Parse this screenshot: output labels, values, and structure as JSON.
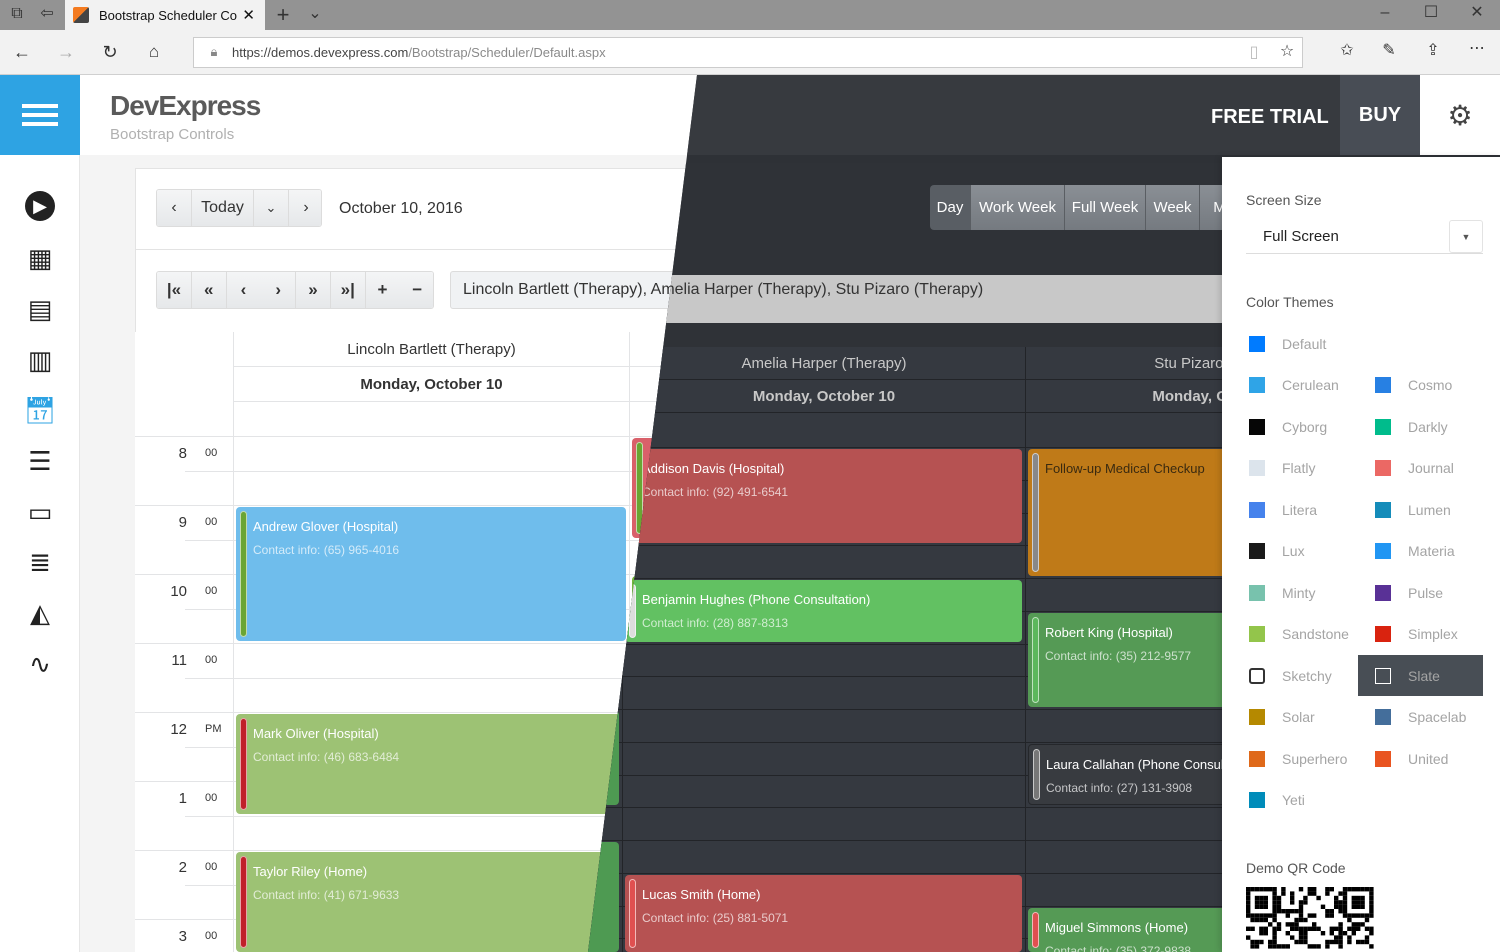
{
  "browser": {
    "tab_title": "Bootstrap Scheduler Co",
    "url_host": "https://demos.devexpress.com",
    "url_path": "/Bootstrap/Scheduler/Default.aspx"
  },
  "header": {
    "brand": "DevExpress",
    "subtitle": "Bootstrap Controls",
    "free_trial": "FREE TRIAL",
    "buy": "BUY"
  },
  "sidebar": {
    "icons": [
      "play-icon",
      "grid-icon",
      "dashboard-icon",
      "bar-chart-icon",
      "calendar-clock-icon",
      "list-icon",
      "monitor-icon",
      "layers-icon",
      "area-chart-icon",
      "pulse-icon"
    ],
    "active": "calendar-clock-icon",
    "active_color": "#2ea3e3"
  },
  "toolbar": {
    "today": "Today",
    "date": "October 10, 2016",
    "resources_text": "Lincoln Bartlett (Therapy), Amelia Harper (Therapy), Stu Pizaro (Therapy)",
    "views": [
      "Day",
      "Work Week",
      "Full Week",
      "Week",
      "M"
    ],
    "active_view": "Day"
  },
  "scheduler": {
    "date_header": "Monday, October 10",
    "resources": [
      "Lincoln Bartlett (Therapy)",
      "Amelia Harper (Therapy)",
      "Stu Pizaro (Therapy)"
    ],
    "times": [
      {
        "h": "8",
        "m": "00"
      },
      {
        "h": "9",
        "m": "00"
      },
      {
        "h": "10",
        "m": "00"
      },
      {
        "h": "11",
        "m": "00"
      },
      {
        "h": "12",
        "m": "PM"
      },
      {
        "h": "1",
        "m": "00"
      },
      {
        "h": "2",
        "m": "00"
      },
      {
        "h": "3",
        "m": "00"
      }
    ],
    "events": [
      {
        "resource": 0,
        "start": 9,
        "end": 11,
        "title": "Andrew Glover (Hospital)",
        "contact": "Contact info: (65) 965-4016",
        "light": "#6fbdec",
        "dark": "#3b8fd0",
        "status": "#6aa533"
      },
      {
        "resource": 0,
        "start": 12,
        "end": 13.5,
        "title": "Mark Oliver (Hospital)",
        "contact": "Contact info: (46) 683-6484",
        "light": "#9dc274",
        "dark": "#4e9a52",
        "status": "#c0202a"
      },
      {
        "resource": 0,
        "start": 14,
        "end": 16,
        "title": "Taylor Riley (Home)",
        "contact": "Contact info: (41) 671-9633",
        "light": "#9dc274",
        "dark": "#4e9a52",
        "status": "#c0202a"
      },
      {
        "resource": 1,
        "start": 8,
        "end": 9.5,
        "title": "Addison Davis (Hospital)",
        "contact": "Contact info: (92) 491-6541",
        "light": "#d9606a",
        "dark": "#b65252",
        "status": "#6aa533"
      },
      {
        "resource": 1,
        "start": 10,
        "end": 11,
        "title": "Benjamin Hughes (Phone Consultation)",
        "contact": "Contact info: (28) 887-8313",
        "light": "#74b63c",
        "dark": "#62c162",
        "status": "#dddddd"
      },
      {
        "resource": 1,
        "start": 14.5,
        "end": 16,
        "title": "Lucas Smith (Home)",
        "contact": "Contact info: (25) 881-5071",
        "light": "#d9606a",
        "dark": "#b65252",
        "status": "#e05050"
      },
      {
        "resource": 2,
        "start": 8,
        "end": 10,
        "title": "Follow-up Medical Checkup",
        "contact": "",
        "light": "#e09a30",
        "dark": "#bf7a18",
        "status": "#888888"
      },
      {
        "resource": 2,
        "start": 10.5,
        "end": 12,
        "title": "Robert King (Hospital)",
        "contact": "Contact info: (35) 212-9577",
        "light": "#6bb86b",
        "dark": "#559a55",
        "status": "#5cb85c"
      },
      {
        "resource": 2,
        "start": 12.5,
        "end": 13.5,
        "title": "Laura Callahan (Phone Consultation)",
        "contact": "Contact info: (27) 131-3908",
        "light": "#eeeeee",
        "dark": "#383b40",
        "status": "#777777"
      },
      {
        "resource": 2,
        "start": 15,
        "end": 17,
        "title": "Miguel Simmons (Home)",
        "contact": "Contact info: (35) 372-9838",
        "light": "#6bb86b",
        "dark": "#559a55",
        "status": "#e05050"
      }
    ]
  },
  "panel": {
    "screen_size_label": "Screen Size",
    "screen_size_value": "Full Screen",
    "themes_label": "Color Themes",
    "selected": "Slate",
    "qr_label": "Demo QR Code",
    "themes": [
      {
        "name": "Default",
        "color": "#007bff"
      },
      null,
      {
        "name": "Cerulean",
        "color": "#2fa4e7"
      },
      {
        "name": "Cosmo",
        "color": "#2780e3"
      },
      {
        "name": "Cyborg",
        "color": "#060606"
      },
      {
        "name": "Darkly",
        "color": "#00bc8c"
      },
      {
        "name": "Flatly",
        "color": "#dce4ec"
      },
      {
        "name": "Journal",
        "color": "#eb6864"
      },
      {
        "name": "Litera",
        "color": "#4582ec"
      },
      {
        "name": "Lumen",
        "color": "#158cba"
      },
      {
        "name": "Lux",
        "color": "#1a1a1a"
      },
      {
        "name": "Materia",
        "color": "#2196f3"
      },
      {
        "name": "Minty",
        "color": "#78c2ad"
      },
      {
        "name": "Pulse",
        "color": "#593196"
      },
      {
        "name": "Sandstone",
        "color": "#93c54b"
      },
      {
        "name": "Simplex",
        "color": "#d9230f"
      },
      {
        "name": "Sketchy",
        "color": "#ffffff"
      },
      {
        "name": "Slate",
        "color": "#484e55"
      },
      {
        "name": "Solar",
        "color": "#b58900"
      },
      {
        "name": "Spacelab",
        "color": "#446e9b"
      },
      {
        "name": "Superhero",
        "color": "#df691a"
      },
      {
        "name": "United",
        "color": "#e95420"
      },
      {
        "name": "Yeti",
        "color": "#008cba"
      }
    ]
  }
}
